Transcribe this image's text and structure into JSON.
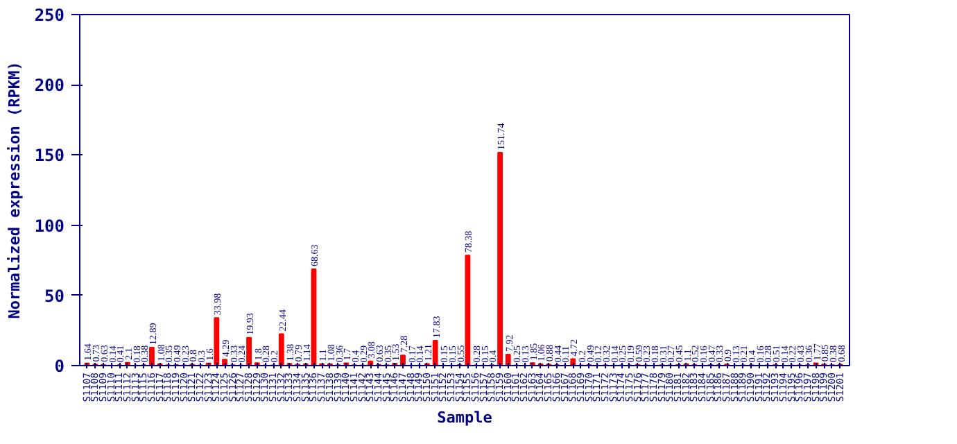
{
  "chart_data": {
    "type": "bar",
    "xlabel": "Sample",
    "ylabel": "Normalized expression (RPKM)",
    "categories": [
      "S1107",
      "S1108",
      "S1109",
      "S1110",
      "S1111",
      "S1112",
      "S1113",
      "S1115",
      "S1116",
      "S1117",
      "S1118",
      "S1119",
      "S1120",
      "S1121",
      "S1122",
      "S1123",
      "S1124",
      "S1125",
      "S1126",
      "S1127",
      "S1128",
      "S1129",
      "S1130",
      "S1131",
      "S1132",
      "S1133",
      "S1134",
      "S1135",
      "S1136",
      "S1137",
      "S1138",
      "S1139",
      "S1140",
      "S1141",
      "S1142",
      "S1143",
      "S1144",
      "S1145",
      "S1146",
      "S1147",
      "S1148",
      "S1149",
      "S1150",
      "S1151",
      "S1152",
      "S1153",
      "S1154",
      "S1155",
      "S1156",
      "S1157",
      "S1158",
      "S1159",
      "S1160",
      "S1161",
      "S1162",
      "S1163",
      "S1164",
      "S1165",
      "S1166",
      "S1167",
      "S1168",
      "S1169",
      "S1170",
      "S1171",
      "S1172",
      "S1173",
      "S1174",
      "S1175",
      "S1176",
      "S1177",
      "S1178",
      "S1179",
      "S1180",
      "S1181",
      "S1182",
      "S1183",
      "S1184",
      "S1185",
      "S1186",
      "S1187",
      "S1188",
      "S1189",
      "S1190",
      "S1191",
      "S1192",
      "S1193",
      "S1194",
      "S1195",
      "S1196",
      "S1197",
      "S1198",
      "S1199",
      "S1200",
      "S1201"
    ],
    "values": [
      1.64,
      0.73,
      0.63,
      0.14,
      0.41,
      2.1,
      0.18,
      0.38,
      12.89,
      1.08,
      0.35,
      0.49,
      0.23,
      0.8,
      0.3,
      1.6,
      33.98,
      4.29,
      0.33,
      0.24,
      19.93,
      1.8,
      0.28,
      0.2,
      22.44,
      1.38,
      0.79,
      1.14,
      68.63,
      1.1,
      1.08,
      0.36,
      1.7,
      0.4,
      0.29,
      3.08,
      0.63,
      0.35,
      1.53,
      7.28,
      0.17,
      0.14,
      1.21,
      17.83,
      0.15,
      0.15,
      0.55,
      78.38,
      0.28,
      0.15,
      0.4,
      151.74,
      7.92,
      0.25,
      0.13,
      1.85,
      1.06,
      0.88,
      0.44,
      0.11,
      4.72,
      0.2,
      0.49,
      0.12,
      0.32,
      0.14,
      0.25,
      0.19,
      0.59,
      0.23,
      0.18,
      0.31,
      0.27,
      0.45,
      1.1,
      0.52,
      0.16,
      0.47,
      0.33,
      0.9,
      0.13,
      0.21,
      0.4,
      0.16,
      0.28,
      0.51,
      0.14,
      0.22,
      0.43,
      0.36,
      1.77,
      0.85,
      0.38,
      0.68
    ],
    "color": "#ff0000",
    "ylim": [
      0,
      250
    ],
    "yticks": [
      0,
      50,
      100,
      150,
      200,
      250
    ],
    "data_labels": true,
    "grid": false
  }
}
